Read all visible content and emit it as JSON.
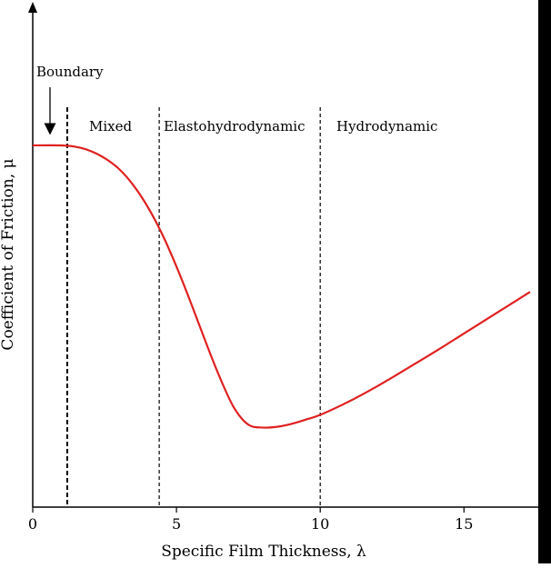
{
  "chart_data": {
    "type": "line",
    "title": "",
    "xlabel": "Specific Film Thickness, λ",
    "ylabel": "Coefficient of Friction, μ",
    "xlim": [
      0,
      17.3
    ],
    "ylim": [
      0,
      1
    ],
    "x_ticks": [
      {
        "value": 0,
        "label": "0"
      },
      {
        "value": 5,
        "label": "5"
      },
      {
        "value": 10,
        "label": "10"
      },
      {
        "value": 15,
        "label": "15"
      }
    ],
    "grid": false,
    "legend": "none",
    "line_color": "#e02020",
    "series": [
      {
        "x": [
          0,
          1.0,
          1.5,
          2.0,
          2.5,
          3.0,
          3.5,
          4.0,
          4.5,
          5.0,
          5.5,
          6.0,
          6.5,
          7.0,
          7.5,
          8.0,
          8.5,
          9.0,
          9.5,
          10.0,
          11.0,
          12.0,
          13.0,
          14.0,
          15.0,
          16.0,
          17.3
        ],
        "y": [
          1.0,
          1.0,
          0.996,
          0.985,
          0.965,
          0.935,
          0.89,
          0.83,
          0.755,
          0.665,
          0.565,
          0.46,
          0.36,
          0.275,
          0.228,
          0.22,
          0.222,
          0.23,
          0.242,
          0.255,
          0.292,
          0.335,
          0.382,
          0.43,
          0.48,
          0.53,
          0.595
        ]
      }
    ],
    "regions": [
      {
        "label": "Boundary",
        "boundary_x": 1.2
      },
      {
        "label": "Mixed",
        "boundary_x": 4.4
      },
      {
        "label": "Elastohydrodynamic",
        "boundary_x": 10.0
      },
      {
        "label": "Hydrodynamic"
      }
    ]
  }
}
